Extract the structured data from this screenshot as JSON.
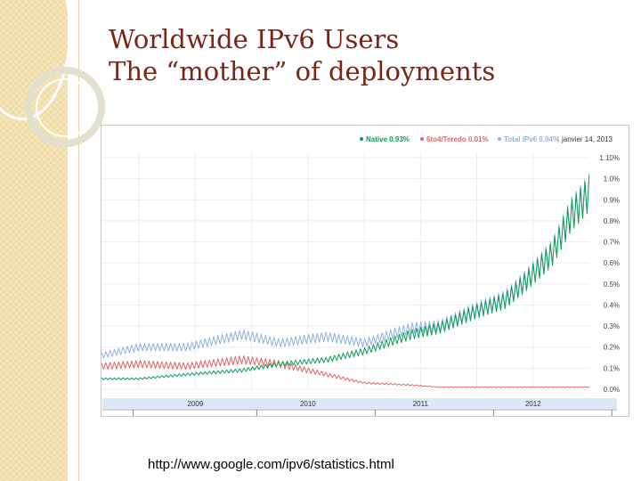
{
  "slide": {
    "title_line1": "Worldwide IPv6 Users",
    "title_line2": "The “mother” of deployments",
    "source_url": "http://www.google.com/ipv6/statistics.html"
  },
  "chart_data": {
    "type": "line",
    "legend": [
      {
        "label": "Native 0.93%",
        "color": "#0f9d58"
      },
      {
        "label": "6to4/Teredo 0.01%",
        "color": "#e06666"
      },
      {
        "label": "Total IPv6 0.94%",
        "color": "#8fb3e0"
      }
    ],
    "date_label": "janvier 14, 2013",
    "legend_position": "top-right",
    "y_ticks": [
      "0.0%",
      "0.1%",
      "0.2%",
      "0.3%",
      "0.4%",
      "0.5%",
      "0.6%",
      "0.7%",
      "0.8%",
      "0.9%",
      "1.0%",
      "1.10%"
    ],
    "ylim": [
      0,
      1.1
    ],
    "x_ticks": [
      "2009",
      "2010",
      "2011",
      "2012"
    ],
    "xlim": [
      "2008-09",
      "2013-01"
    ],
    "grid": true,
    "series": [
      {
        "name": "Native",
        "color": "#0f9d58",
        "x": [
          "2008-09",
          "2009-01",
          "2009-06",
          "2009-12",
          "2010-04",
          "2010-09",
          "2011-01",
          "2011-06",
          "2011-09",
          "2012-01",
          "2012-04",
          "2012-06",
          "2012-09",
          "2012-11",
          "2013-01"
        ],
        "y": [
          0.05,
          0.05,
          0.07,
          0.09,
          0.12,
          0.14,
          0.18,
          0.26,
          0.29,
          0.37,
          0.42,
          0.5,
          0.64,
          0.82,
          0.93
        ]
      },
      {
        "name": "6to4/Teredo",
        "color": "#e06666",
        "x": [
          "2008-09",
          "2009-01",
          "2009-06",
          "2009-12",
          "2010-04",
          "2010-09",
          "2011-01",
          "2011-06",
          "2011-09",
          "2012-01",
          "2012-06",
          "2013-01"
        ],
        "y": [
          0.11,
          0.12,
          0.11,
          0.14,
          0.12,
          0.07,
          0.03,
          0.02,
          0.01,
          0.01,
          0.01,
          0.01
        ]
      },
      {
        "name": "Total IPv6",
        "color": "#8fb3e0",
        "x": [
          "2008-09",
          "2009-01",
          "2009-06",
          "2009-12",
          "2010-04",
          "2010-09",
          "2011-01",
          "2011-06",
          "2011-09",
          "2012-01",
          "2012-04",
          "2012-06",
          "2012-09",
          "2012-11",
          "2013-01"
        ],
        "y": [
          0.16,
          0.2,
          0.2,
          0.26,
          0.22,
          0.25,
          0.22,
          0.29,
          0.3,
          0.38,
          0.43,
          0.51,
          0.65,
          0.83,
          0.94
        ]
      }
    ]
  }
}
